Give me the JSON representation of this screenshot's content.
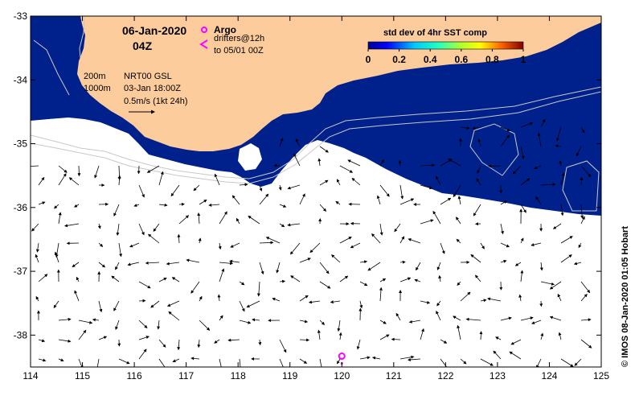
{
  "map": {
    "date": "06-Jan-2020",
    "time": "04Z",
    "argo_label": "Argo",
    "drifters_label": "drifters@12h",
    "drifters_to": "to 05/01 00Z",
    "contour_200": "200m",
    "contour_1000": "1000m",
    "source": "NRT00 GSL",
    "source_time": "03-Jan 18:00Z",
    "scale_label": "0.5m/s (1kt 24h)",
    "colorbar_title": "std dev of 4hr SST comp",
    "colorbar_ticks": [
      "0",
      "0.2",
      "0.4",
      "0.6",
      "0.8",
      "1"
    ],
    "credit": "© IMOS 08-Jan-2020 01:05 Hobart",
    "lon_ticks": [
      "114",
      "115",
      "116",
      "117",
      "118",
      "119",
      "120",
      "121",
      "122",
      "123",
      "124",
      "125"
    ],
    "lat_ticks": [
      "-33",
      "-34",
      "-35",
      "-36",
      "-37",
      "-38"
    ],
    "colors": {
      "land": "#fccc9c",
      "sst_low": "#00208c",
      "contour": "#c8c8c8",
      "argo": "#ff00ff"
    },
    "argo_float": {
      "lon": 120.0,
      "lat": -38.33
    }
  }
}
